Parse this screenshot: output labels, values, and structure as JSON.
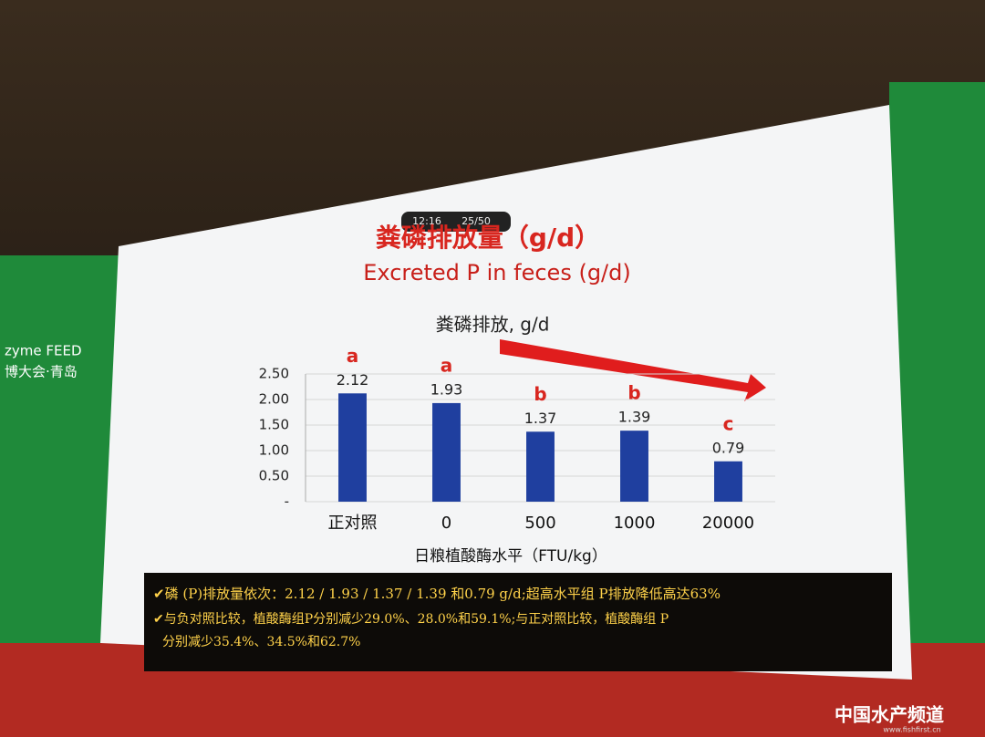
{
  "screen": {
    "clock": "12:16",
    "page_counter": "25/50",
    "side_logo": "zyme FEED",
    "side_city": "博大会·青岛",
    "watermark": "中国水产频道",
    "watermark_url": "www.fishfirst.cn"
  },
  "slide": {
    "heading": "粪磷排放量（g/d）",
    "heading_en": "Excreted P in feces (g/d)",
    "notes": [
      "✔磷 (P)排放量依次：2.12 / 1.93 / 1.37 / 1.39 和0.79 g/d;超高水平组 P排放降低高达63%",
      "✔与负对照比较，植酸酶组P分别减少29.0%、28.0%和59.1%;与正对照比较，植酸酶组 P",
      "分别减少35.4%、34.5%和62.7%"
    ]
  },
  "chart_data": {
    "type": "bar",
    "title": "粪磷排放, g/d",
    "x_label": "日粮植酸酶水平（FTU/kg）",
    "categories": [
      "正对照",
      "0",
      "500",
      "1000",
      "20000"
    ],
    "values": [
      2.12,
      1.93,
      1.37,
      1.39,
      0.79
    ],
    "significance": [
      "a",
      "a",
      "b",
      "b",
      "c"
    ],
    "color": "#1f3f9f",
    "ylim": [
      0,
      2.5
    ],
    "yticks": [
      {
        "value": 0,
        "label": "-"
      },
      {
        "value": 0.5,
        "label": "0.50"
      },
      {
        "value": 1,
        "label": "1.00"
      },
      {
        "value": 1.5,
        "label": "1.50"
      },
      {
        "value": 2,
        "label": "2.00"
      },
      {
        "value": 2.5,
        "label": "2.50"
      }
    ],
    "grid": true
  }
}
